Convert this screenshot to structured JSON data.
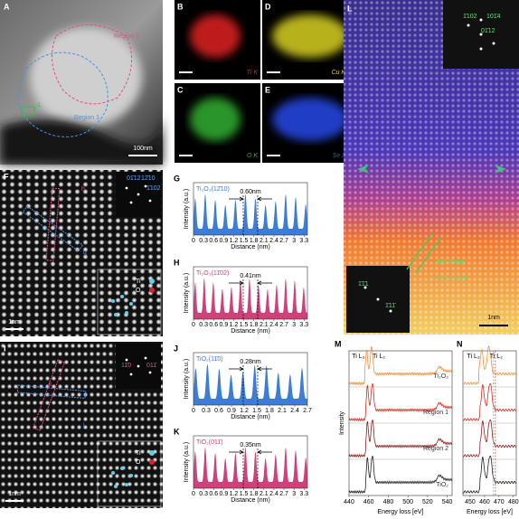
{
  "A": {
    "letter": "A",
    "region2": "Region 2",
    "region1": "Region 1",
    "box": "L",
    "scale": "100nm"
  },
  "maps": [
    {
      "letter": "B",
      "label": "Ti K",
      "color": "#e02020"
    },
    {
      "letter": "D",
      "label": "Cu K",
      "color": "#d8d020"
    },
    {
      "letter": "C",
      "label": "O K",
      "color": "#30b030"
    },
    {
      "letter": "E",
      "label": "Se L",
      "color": "#2848e8"
    }
  ],
  "L": {
    "letter": "L",
    "fft_top": [
      "1̄102",
      "101̄4",
      "01̄12"
    ],
    "fft_bottom": [
      "1̄1̄1",
      "1̄11̄"
    ],
    "spacing": "d=0.35nm",
    "phase": "Cu₂Se(1̄1̄1̄)",
    "scale": "1nm"
  },
  "F": {
    "letter": "F",
    "fft": [
      "01̄12",
      "12̄10",
      "1̄102"
    ],
    "line_a": "h",
    "line_b": "g",
    "ti": "Ti",
    "o": "O",
    "scale": "1nm"
  },
  "I": {
    "letter": "I",
    "fft": [
      "11̄0",
      "011̄"
    ],
    "line_a": "k",
    "line_b": "j",
    "ti": "Ti",
    "o": "O",
    "scale": "1nm"
  },
  "profiles": [
    {
      "letter": "G",
      "title": "Ti₂O₃(12̄10)",
      "measure": "0.60nm",
      "ylabel": "Intensity (a.u.)",
      "xlabel": "Distance (nm)",
      "xlim": [
        0,
        3.4
      ],
      "xticks": [
        0,
        0.3,
        0.6,
        0.9,
        1.2,
        1.5,
        1.8,
        2.1,
        2.4,
        2.7,
        3.0,
        3.3
      ],
      "color": "#3b7dd8"
    },
    {
      "letter": "H",
      "title": "Ti₂O₃(11̄02)",
      "measure": "0.41nm",
      "ylabel": "Intensity (a.u.)",
      "xlabel": "Distance (nm)",
      "xlim": [
        0,
        3.4
      ],
      "xticks": [
        0,
        0.3,
        0.6,
        0.9,
        1.2,
        1.5,
        1.8,
        2.1,
        2.4,
        2.7,
        3.0,
        3.3
      ],
      "color": "#d0407a"
    },
    {
      "letter": "J",
      "title": "TiO₂(11̄0)",
      "measure": "0.28nm",
      "ylabel": "Intensity (a.u.)",
      "xlabel": "Distance (nm)",
      "xlim": [
        0,
        2.7
      ],
      "xticks": [
        0,
        0.3,
        0.6,
        0.9,
        1.2,
        1.5,
        1.8,
        2.1,
        2.4,
        2.7
      ],
      "color": "#3b7dd8"
    },
    {
      "letter": "K",
      "title": "TiO₂(011̄)",
      "measure": "0.35nm",
      "ylabel": "Intensity (a.u.)",
      "xlabel": "Distance (nm)",
      "xlim": [
        0,
        3.4
      ],
      "xticks": [
        0,
        0.3,
        0.6,
        0.9,
        1.2,
        1.5,
        1.8,
        2.1,
        2.4,
        2.7,
        3.0,
        3.3
      ],
      "color": "#d0407a"
    }
  ],
  "eels": {
    "M": {
      "letter": "M",
      "ylabel": "Intensity",
      "xlabel": "Energy loss [eV]",
      "edge_l3": "Ti L₃",
      "edge_l2": "Ti L₂",
      "xlim": [
        440,
        545
      ],
      "xticks": [
        440,
        460,
        480,
        500,
        520,
        540
      ],
      "spectra": [
        {
          "name": "Ti₂O₃",
          "color": "#f0903a"
        },
        {
          "name": "Region 1",
          "color": "#d03020"
        },
        {
          "name": "Region 2",
          "color": "#8a2020"
        },
        {
          "name": "TiO₂",
          "color": "#222222"
        }
      ]
    },
    "N": {
      "letter": "N",
      "xlabel": "Energy loss [eV]",
      "edge_l3": "Ti L₃",
      "edge_l2": "Ti L₂",
      "xlim": [
        445,
        482
      ],
      "xticks": [
        450,
        460,
        470,
        480
      ]
    }
  }
}
